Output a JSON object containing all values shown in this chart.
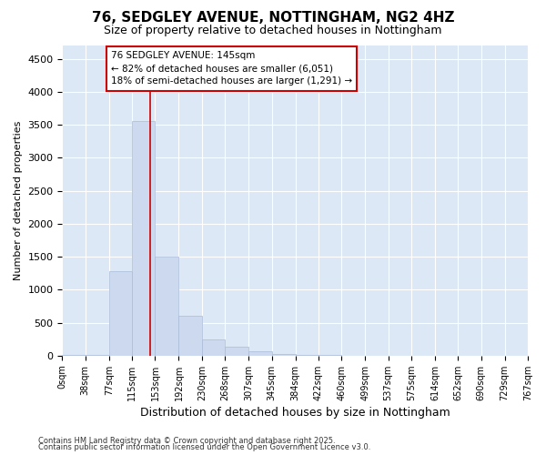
{
  "title_line1": "76, SEDGLEY AVENUE, NOTTINGHAM, NG2 4HZ",
  "title_line2": "Size of property relative to detached houses in Nottingham",
  "xlabel": "Distribution of detached houses by size in Nottingham",
  "ylabel": "Number of detached properties",
  "bin_labels": [
    "0sqm",
    "38sqm",
    "77sqm",
    "115sqm",
    "153sqm",
    "192sqm",
    "230sqm",
    "268sqm",
    "307sqm",
    "345sqm",
    "384sqm",
    "422sqm",
    "460sqm",
    "499sqm",
    "537sqm",
    "575sqm",
    "614sqm",
    "652sqm",
    "690sqm",
    "729sqm",
    "767sqm"
  ],
  "bin_edges": [
    0,
    38,
    77,
    115,
    153,
    192,
    230,
    268,
    307,
    345,
    384,
    422,
    460,
    499,
    537,
    575,
    614,
    652,
    690,
    729,
    767
  ],
  "bar_values": [
    5,
    5,
    1280,
    3550,
    1500,
    600,
    250,
    130,
    65,
    30,
    10,
    5,
    3,
    2,
    1,
    0,
    0,
    0,
    0,
    0,
    0
  ],
  "bar_color": "#ccd9ee",
  "bar_edge_color": "#aabbd8",
  "property_line_x": 145,
  "property_line_color": "#cc0000",
  "annotation_text": "76 SEDGLEY AVENUE: 145sqm\n← 82% of detached houses are smaller (6,051)\n18% of semi-detached houses are larger (1,291) →",
  "annotation_box_color": "#cc0000",
  "annotation_text_color": "#000000",
  "ylim": [
    0,
    4700
  ],
  "yticks": [
    0,
    500,
    1000,
    1500,
    2000,
    2500,
    3000,
    3500,
    4000,
    4500
  ],
  "background_color": "#dce8f5",
  "grid_color": "#ffffff",
  "fig_bg_color": "#ffffff",
  "footer_line1": "Contains HM Land Registry data © Crown copyright and database right 2025.",
  "footer_line2": "Contains public sector information licensed under the Open Government Licence v3.0."
}
